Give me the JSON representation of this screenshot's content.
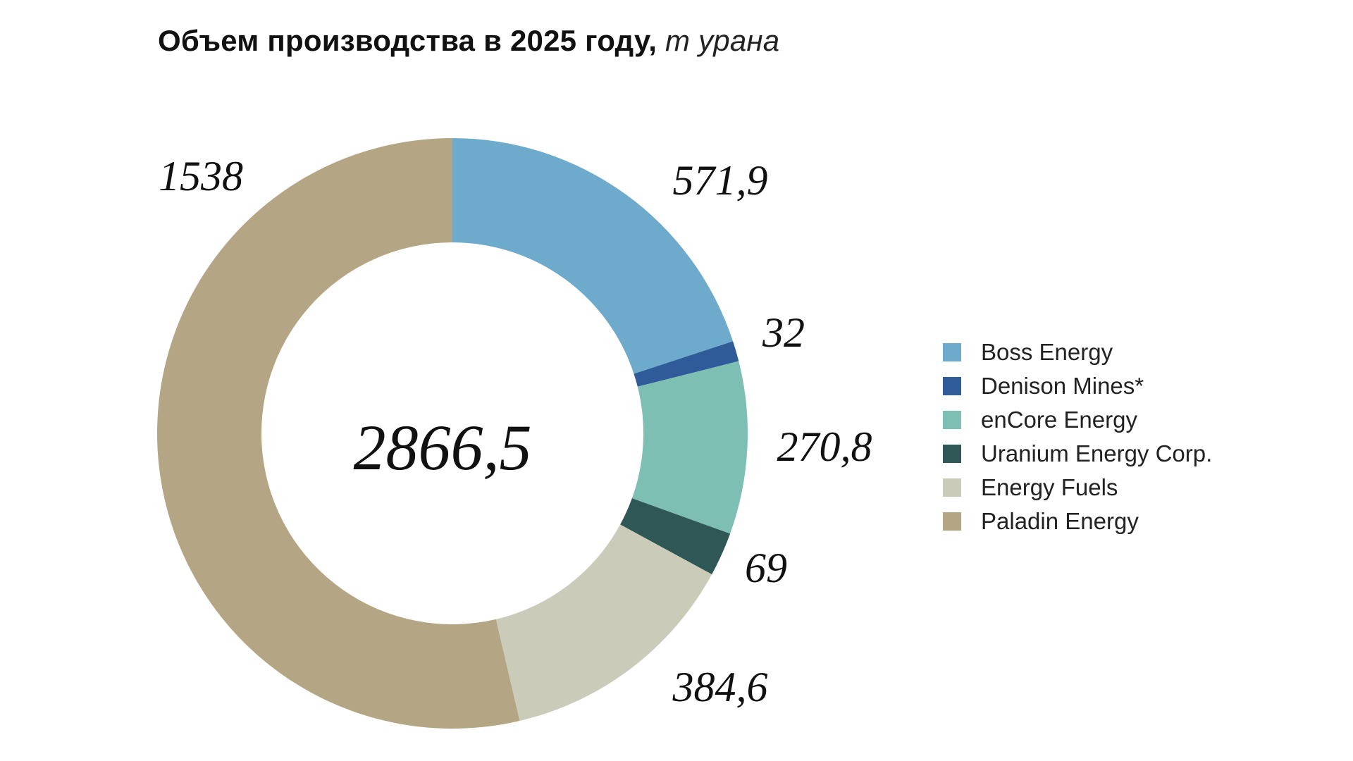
{
  "title": "Объем производства в 2025 году,",
  "unit": "т урана",
  "chart_data": {
    "type": "pie",
    "donut": true,
    "title": "Объем производства в 2025 году, т урана",
    "total_label": "2866,5",
    "categories": [
      "Boss Energy",
      "Denison Mines*",
      "enCore Energy",
      "Uranium Energy Corp.",
      "Energy Fuels",
      "Paladin Energy"
    ],
    "values": [
      571.9,
      32,
      270.8,
      69,
      384.6,
      1538
    ],
    "value_labels": [
      "571,9",
      "32",
      "270,8",
      "69",
      "384,6",
      "1538"
    ],
    "colors": [
      "#6eaacb",
      "#2f5b99",
      "#7ebfb4",
      "#2e5756",
      "#cacbb9",
      "#b4a584"
    ],
    "legend_position": "right"
  }
}
